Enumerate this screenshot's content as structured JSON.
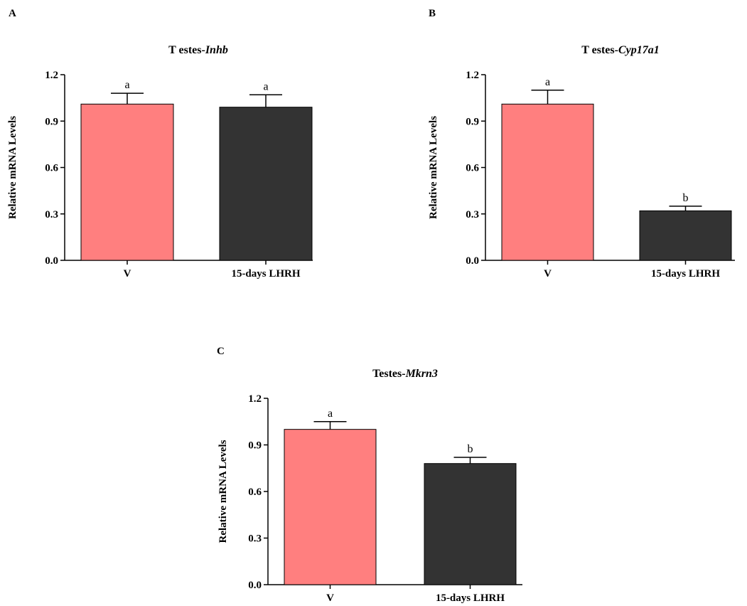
{
  "chart_data": [
    {
      "type": "bar",
      "panel": "A",
      "title_prefix": "T estes-",
      "title_gene": "Inhb",
      "ylabel": "Relative mRNA Levels",
      "xlabel": "",
      "ylim": [
        0,
        1.2
      ],
      "yticks": [
        "0.0",
        "0.3",
        "0.6",
        "0.9",
        "1.2"
      ],
      "categories": [
        "V",
        "15-days LHRH"
      ],
      "values": [
        1.01,
        0.99
      ],
      "errors": [
        0.07,
        0.08
      ],
      "significance": [
        "a",
        "a"
      ],
      "colors": [
        "#ff7f7f",
        "#333333"
      ],
      "grid": false,
      "legend": "none"
    },
    {
      "type": "bar",
      "panel": "B",
      "title_prefix": "T estes-",
      "title_gene": "Cyp17a1",
      "ylabel": "Relative mRNA Levels",
      "xlabel": "",
      "ylim": [
        0,
        1.2
      ],
      "yticks": [
        "0.0",
        "0.3",
        "0.6",
        "0.9",
        "1.2"
      ],
      "categories": [
        "V",
        "15-days LHRH"
      ],
      "values": [
        1.01,
        0.32
      ],
      "errors": [
        0.09,
        0.03
      ],
      "significance": [
        "a",
        "b"
      ],
      "colors": [
        "#ff7f7f",
        "#333333"
      ],
      "grid": false,
      "legend": "none"
    },
    {
      "type": "bar",
      "panel": "C",
      "title_prefix": "Testes-",
      "title_gene": "Mkrn3",
      "ylabel": "Relative mRNA Levels",
      "xlabel": "",
      "ylim": [
        0,
        1.2
      ],
      "yticks": [
        "0.0",
        "0.3",
        "0.6",
        "0.9",
        "1.2"
      ],
      "categories": [
        "V",
        "15-days LHRH"
      ],
      "values": [
        1.0,
        0.78
      ],
      "errors": [
        0.05,
        0.04
      ],
      "significance": [
        "a",
        "b"
      ],
      "colors": [
        "#ff7f7f",
        "#333333"
      ],
      "grid": false,
      "legend": "none"
    }
  ]
}
